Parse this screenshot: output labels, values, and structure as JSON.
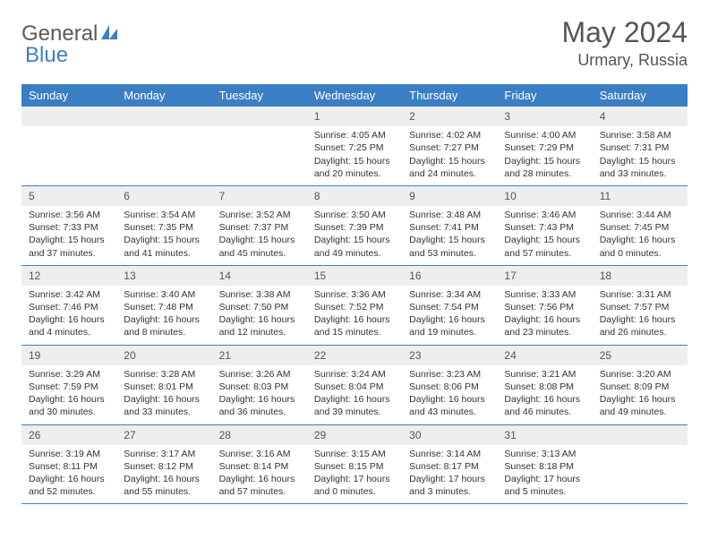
{
  "brand": {
    "part1": "General",
    "part2": "Blue"
  },
  "title": "May 2024",
  "location": "Urmary, Russia",
  "day_headers": [
    "Sunday",
    "Monday",
    "Tuesday",
    "Wednesday",
    "Thursday",
    "Friday",
    "Saturday"
  ],
  "colors": {
    "header_bg": "#3a7fc4",
    "header_text": "#ffffff",
    "daynum_bg": "#eceef0",
    "text": "#333333",
    "border": "#3a7fc4"
  },
  "weeks": [
    [
      {
        "num": "",
        "sunrise": "",
        "sunset": "",
        "daylight1": "",
        "daylight2": ""
      },
      {
        "num": "",
        "sunrise": "",
        "sunset": "",
        "daylight1": "",
        "daylight2": ""
      },
      {
        "num": "",
        "sunrise": "",
        "sunset": "",
        "daylight1": "",
        "daylight2": ""
      },
      {
        "num": "1",
        "sunrise": "Sunrise: 4:05 AM",
        "sunset": "Sunset: 7:25 PM",
        "daylight1": "Daylight: 15 hours",
        "daylight2": "and 20 minutes."
      },
      {
        "num": "2",
        "sunrise": "Sunrise: 4:02 AM",
        "sunset": "Sunset: 7:27 PM",
        "daylight1": "Daylight: 15 hours",
        "daylight2": "and 24 minutes."
      },
      {
        "num": "3",
        "sunrise": "Sunrise: 4:00 AM",
        "sunset": "Sunset: 7:29 PM",
        "daylight1": "Daylight: 15 hours",
        "daylight2": "and 28 minutes."
      },
      {
        "num": "4",
        "sunrise": "Sunrise: 3:58 AM",
        "sunset": "Sunset: 7:31 PM",
        "daylight1": "Daylight: 15 hours",
        "daylight2": "and 33 minutes."
      }
    ],
    [
      {
        "num": "5",
        "sunrise": "Sunrise: 3:56 AM",
        "sunset": "Sunset: 7:33 PM",
        "daylight1": "Daylight: 15 hours",
        "daylight2": "and 37 minutes."
      },
      {
        "num": "6",
        "sunrise": "Sunrise: 3:54 AM",
        "sunset": "Sunset: 7:35 PM",
        "daylight1": "Daylight: 15 hours",
        "daylight2": "and 41 minutes."
      },
      {
        "num": "7",
        "sunrise": "Sunrise: 3:52 AM",
        "sunset": "Sunset: 7:37 PM",
        "daylight1": "Daylight: 15 hours",
        "daylight2": "and 45 minutes."
      },
      {
        "num": "8",
        "sunrise": "Sunrise: 3:50 AM",
        "sunset": "Sunset: 7:39 PM",
        "daylight1": "Daylight: 15 hours",
        "daylight2": "and 49 minutes."
      },
      {
        "num": "9",
        "sunrise": "Sunrise: 3:48 AM",
        "sunset": "Sunset: 7:41 PM",
        "daylight1": "Daylight: 15 hours",
        "daylight2": "and 53 minutes."
      },
      {
        "num": "10",
        "sunrise": "Sunrise: 3:46 AM",
        "sunset": "Sunset: 7:43 PM",
        "daylight1": "Daylight: 15 hours",
        "daylight2": "and 57 minutes."
      },
      {
        "num": "11",
        "sunrise": "Sunrise: 3:44 AM",
        "sunset": "Sunset: 7:45 PM",
        "daylight1": "Daylight: 16 hours",
        "daylight2": "and 0 minutes."
      }
    ],
    [
      {
        "num": "12",
        "sunrise": "Sunrise: 3:42 AM",
        "sunset": "Sunset: 7:46 PM",
        "daylight1": "Daylight: 16 hours",
        "daylight2": "and 4 minutes."
      },
      {
        "num": "13",
        "sunrise": "Sunrise: 3:40 AM",
        "sunset": "Sunset: 7:48 PM",
        "daylight1": "Daylight: 16 hours",
        "daylight2": "and 8 minutes."
      },
      {
        "num": "14",
        "sunrise": "Sunrise: 3:38 AM",
        "sunset": "Sunset: 7:50 PM",
        "daylight1": "Daylight: 16 hours",
        "daylight2": "and 12 minutes."
      },
      {
        "num": "15",
        "sunrise": "Sunrise: 3:36 AM",
        "sunset": "Sunset: 7:52 PM",
        "daylight1": "Daylight: 16 hours",
        "daylight2": "and 15 minutes."
      },
      {
        "num": "16",
        "sunrise": "Sunrise: 3:34 AM",
        "sunset": "Sunset: 7:54 PM",
        "daylight1": "Daylight: 16 hours",
        "daylight2": "and 19 minutes."
      },
      {
        "num": "17",
        "sunrise": "Sunrise: 3:33 AM",
        "sunset": "Sunset: 7:56 PM",
        "daylight1": "Daylight: 16 hours",
        "daylight2": "and 23 minutes."
      },
      {
        "num": "18",
        "sunrise": "Sunrise: 3:31 AM",
        "sunset": "Sunset: 7:57 PM",
        "daylight1": "Daylight: 16 hours",
        "daylight2": "and 26 minutes."
      }
    ],
    [
      {
        "num": "19",
        "sunrise": "Sunrise: 3:29 AM",
        "sunset": "Sunset: 7:59 PM",
        "daylight1": "Daylight: 16 hours",
        "daylight2": "and 30 minutes."
      },
      {
        "num": "20",
        "sunrise": "Sunrise: 3:28 AM",
        "sunset": "Sunset: 8:01 PM",
        "daylight1": "Daylight: 16 hours",
        "daylight2": "and 33 minutes."
      },
      {
        "num": "21",
        "sunrise": "Sunrise: 3:26 AM",
        "sunset": "Sunset: 8:03 PM",
        "daylight1": "Daylight: 16 hours",
        "daylight2": "and 36 minutes."
      },
      {
        "num": "22",
        "sunrise": "Sunrise: 3:24 AM",
        "sunset": "Sunset: 8:04 PM",
        "daylight1": "Daylight: 16 hours",
        "daylight2": "and 39 minutes."
      },
      {
        "num": "23",
        "sunrise": "Sunrise: 3:23 AM",
        "sunset": "Sunset: 8:06 PM",
        "daylight1": "Daylight: 16 hours",
        "daylight2": "and 43 minutes."
      },
      {
        "num": "24",
        "sunrise": "Sunrise: 3:21 AM",
        "sunset": "Sunset: 8:08 PM",
        "daylight1": "Daylight: 16 hours",
        "daylight2": "and 46 minutes."
      },
      {
        "num": "25",
        "sunrise": "Sunrise: 3:20 AM",
        "sunset": "Sunset: 8:09 PM",
        "daylight1": "Daylight: 16 hours",
        "daylight2": "and 49 minutes."
      }
    ],
    [
      {
        "num": "26",
        "sunrise": "Sunrise: 3:19 AM",
        "sunset": "Sunset: 8:11 PM",
        "daylight1": "Daylight: 16 hours",
        "daylight2": "and 52 minutes."
      },
      {
        "num": "27",
        "sunrise": "Sunrise: 3:17 AM",
        "sunset": "Sunset: 8:12 PM",
        "daylight1": "Daylight: 16 hours",
        "daylight2": "and 55 minutes."
      },
      {
        "num": "28",
        "sunrise": "Sunrise: 3:16 AM",
        "sunset": "Sunset: 8:14 PM",
        "daylight1": "Daylight: 16 hours",
        "daylight2": "and 57 minutes."
      },
      {
        "num": "29",
        "sunrise": "Sunrise: 3:15 AM",
        "sunset": "Sunset: 8:15 PM",
        "daylight1": "Daylight: 17 hours",
        "daylight2": "and 0 minutes."
      },
      {
        "num": "30",
        "sunrise": "Sunrise: 3:14 AM",
        "sunset": "Sunset: 8:17 PM",
        "daylight1": "Daylight: 17 hours",
        "daylight2": "and 3 minutes."
      },
      {
        "num": "31",
        "sunrise": "Sunrise: 3:13 AM",
        "sunset": "Sunset: 8:18 PM",
        "daylight1": "Daylight: 17 hours",
        "daylight2": "and 5 minutes."
      },
      {
        "num": "",
        "sunrise": "",
        "sunset": "",
        "daylight1": "",
        "daylight2": ""
      }
    ]
  ]
}
